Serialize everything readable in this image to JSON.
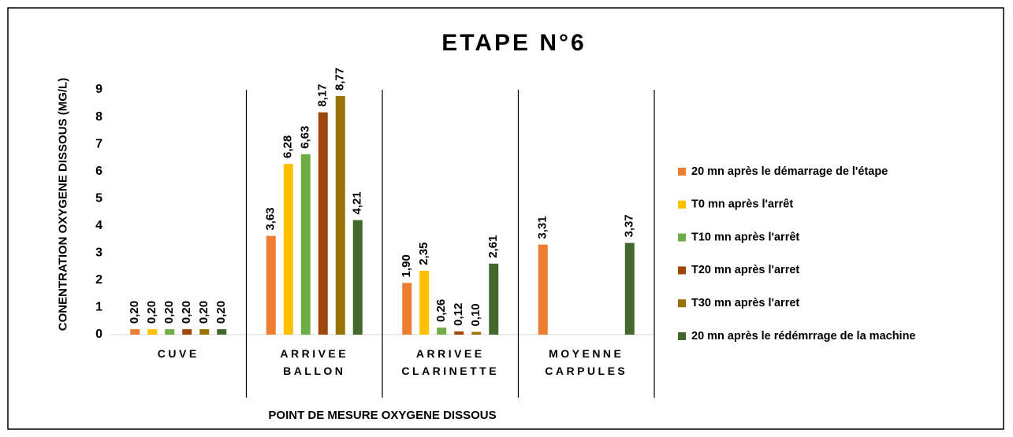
{
  "chart_data": {
    "type": "bar",
    "title": "ETAPE N°6",
    "y_label": "CONENTRATION OXYGENE DISSOUS (MG/L)",
    "x_label": "POINT DE MESURE OXYGENE DISSOUS",
    "categories": [
      "CUVE",
      "ARRIVEE BALLON",
      "ARRIVEE CLARINETTE",
      "MOYENNE CARPULES"
    ],
    "series": [
      {
        "name": "20 mn après le démarrage de l'étape",
        "color": "#ED7D31",
        "values": [
          0.2,
          3.63,
          1.9,
          3.31
        ],
        "value_labels": [
          "0,20",
          "3,63",
          "1,90",
          "3,31"
        ]
      },
      {
        "name": "T0 mn après l'arrêt",
        "color": "#FFC000",
        "values": [
          0.2,
          6.28,
          2.35,
          null
        ],
        "value_labels": [
          "0,20",
          "6,28",
          "2,35",
          null
        ]
      },
      {
        "name": "T10 mn après l'arrêt",
        "color": "#70AD47",
        "values": [
          0.2,
          6.63,
          0.26,
          null
        ],
        "value_labels": [
          "0,20",
          "6,63",
          "0,26",
          null
        ]
      },
      {
        "name": "T20 mn après l'arret",
        "color": "#9E480E",
        "values": [
          0.2,
          8.17,
          0.12,
          null
        ],
        "value_labels": [
          "0,20",
          "8,17",
          "0,12",
          null
        ]
      },
      {
        "name": "T30 mn après l'arret",
        "color": "#997300",
        "values": [
          0.2,
          8.77,
          0.1,
          null
        ],
        "value_labels": [
          "0,20",
          "8,77",
          "0,10",
          null
        ]
      },
      {
        "name": "20 mn après le rédémrrage de la machine",
        "color": "#43682B",
        "values": [
          0.2,
          4.21,
          2.61,
          3.37
        ],
        "value_labels": [
          "0,20",
          "4,21",
          "2,61",
          "3,37"
        ]
      }
    ],
    "ylim": [
      0,
      9
    ],
    "yticks": [
      0,
      1,
      2,
      3,
      4,
      5,
      6,
      7,
      8,
      9
    ],
    "grid": false,
    "legend": "right"
  }
}
